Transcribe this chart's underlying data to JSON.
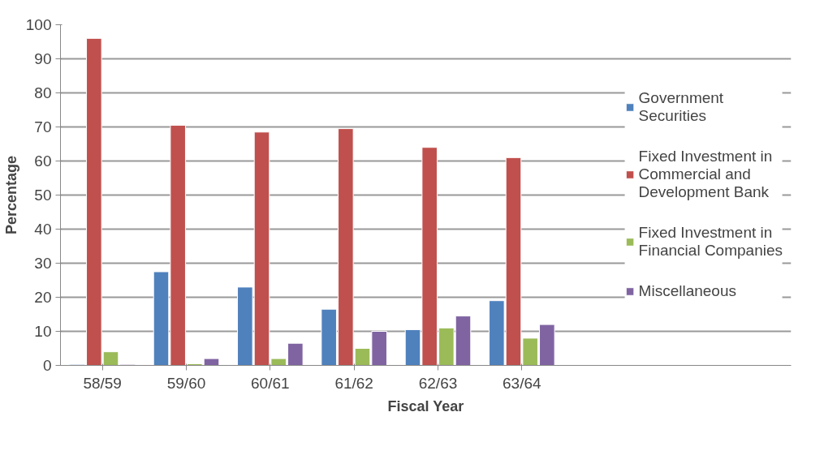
{
  "chart_data": {
    "type": "bar",
    "xlabel": "Fiscal Year",
    "ylabel": "Percentage",
    "categories": [
      "58/59",
      "59/60",
      "60/61",
      "61/62",
      "62/63",
      "63/64"
    ],
    "series": [
      {
        "name": "Government Securities",
        "color": "#4f81bd",
        "values": [
          0.3,
          27.5,
          23,
          16.5,
          10.5,
          19
        ]
      },
      {
        "name": "Fixed Investment in Commercial and Development Bank",
        "color": "#c0504d",
        "values": [
          96,
          70.5,
          68.5,
          69.5,
          64,
          61
        ]
      },
      {
        "name": "Fixed Investment in Financial Companies",
        "color": "#9bbb59",
        "values": [
          4,
          0.5,
          2,
          5,
          11,
          8
        ]
      },
      {
        "name": "Miscellaneous",
        "color": "#8064a2",
        "values": [
          0.3,
          2,
          6.5,
          10,
          14.5,
          12
        ]
      }
    ],
    "ylim": [
      0,
      100
    ],
    "yticks": [
      0,
      10,
      20,
      30,
      40,
      50,
      60,
      70,
      80,
      90,
      100
    ],
    "grid": "y",
    "legend": "right"
  }
}
